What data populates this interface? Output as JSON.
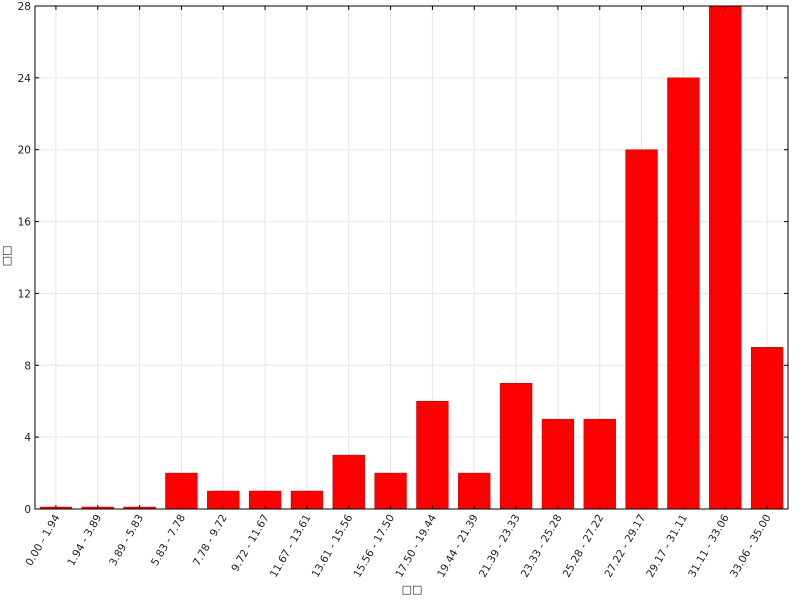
{
  "chart_data": {
    "type": "bar",
    "categories": [
      "0.00 - 1.94",
      "1.94 - 3.89",
      "3.89 - 5.83",
      "5.83 - 7.78",
      "7.78 - 9.72",
      "9.72 - 11.67",
      "11.67 - 13.61",
      "13.61 - 15.56",
      "15.56 - 17.50",
      "17.50 - 19.44",
      "19.44 - 21.39",
      "21.39 - 23.33",
      "23.33 - 25.28",
      "25.28 - 27.22",
      "27.22 - 29.17",
      "29.17 - 31.11",
      "31.11 - 33.06",
      "33.06 - 35.00"
    ],
    "values": [
      0,
      0,
      0,
      2,
      1,
      1,
      1,
      3,
      2,
      6,
      2,
      7,
      5,
      5,
      20,
      24,
      28,
      9
    ],
    "title": "",
    "xlabel": "□□",
    "ylabel": "□□",
    "ylim": [
      0,
      28
    ],
    "yticks": [
      0,
      4,
      8,
      12,
      16,
      20,
      24,
      28
    ],
    "grid": true,
    "colors": {
      "bar": "#ff0000",
      "bar_outline": "#b00000",
      "axis": "#000000",
      "grid": "#e6e6e6"
    }
  }
}
